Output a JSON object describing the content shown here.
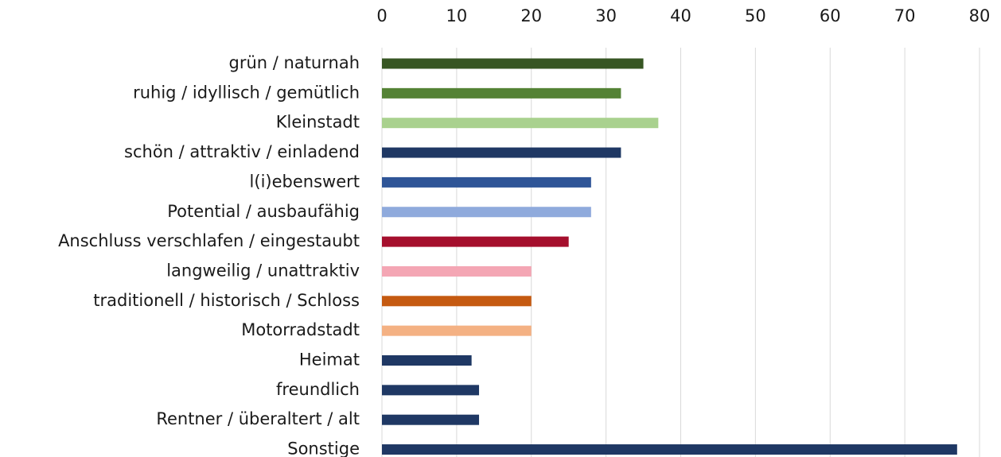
{
  "chart_data": {
    "type": "hbar",
    "categories": [
      "grün / naturnah",
      "ruhig / idyllisch / gemütlich",
      "Kleinstadt",
      "schön / attraktiv / einladend",
      "l(i)ebenswert",
      "Potential / ausbaufähig",
      "Anschluss verschlafen / eingestaubt",
      "langweilig / unattraktiv",
      "traditionell / historisch / Schloss",
      "Motorradstadt",
      "Heimat",
      "freundlich",
      "Rentner / überaltert / alt",
      "Sonstige"
    ],
    "values": [
      35,
      32,
      37,
      32,
      28,
      28,
      25,
      20,
      20,
      20,
      12,
      13,
      13,
      77
    ],
    "colors": [
      "#375623",
      "#548235",
      "#a9d18e",
      "#1f3864",
      "#2f5597",
      "#8faadc",
      "#a50f2d",
      "#f4a6b4",
      "#c55a11",
      "#f4b183",
      "#1f3864",
      "#1f3864",
      "#1f3864",
      "#1f3864"
    ],
    "xlim": [
      0,
      80
    ],
    "xticks": [
      0,
      10,
      20,
      30,
      40,
      50,
      60,
      70,
      80
    ],
    "grid": true
  }
}
